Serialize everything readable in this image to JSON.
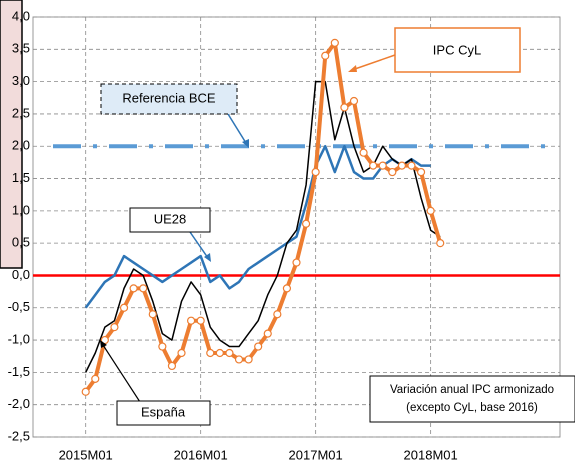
{
  "chart_data": {
    "type": "line",
    "categories": [
      null,
      null,
      null,
      null,
      null,
      "2015M01",
      null,
      null,
      null,
      null,
      null,
      null,
      null,
      null,
      null,
      null,
      null,
      "2016M01",
      null,
      null,
      null,
      null,
      null,
      null,
      null,
      null,
      null,
      null,
      null,
      "2017M01",
      null,
      null,
      null,
      null,
      null,
      null,
      null,
      null,
      null,
      null,
      null,
      "2018M01",
      null,
      null,
      null,
      null,
      null,
      null,
      null,
      null,
      null,
      null,
      null,
      null,
      null
    ],
    "series": [
      {
        "name": "UE28",
        "color": "#2E75B6",
        "values": [
          null,
          null,
          null,
          null,
          null,
          -0.5,
          -0.3,
          -0.1,
          0.0,
          0.3,
          0.2,
          0.1,
          0.0,
          -0.1,
          0.0,
          0.1,
          0.2,
          0.3,
          -0.1,
          0.0,
          -0.2,
          -0.1,
          0.1,
          0.2,
          0.3,
          0.4,
          0.5,
          0.6,
          1.1,
          1.7,
          2.0,
          1.6,
          2.0,
          1.6,
          1.5,
          1.5,
          1.7,
          1.8,
          1.7,
          1.8,
          1.7,
          1.7,
          null,
          null,
          null,
          null,
          null,
          null,
          null,
          null,
          null,
          null,
          null,
          null,
          null
        ]
      },
      {
        "name": "España",
        "color": "#000000",
        "values": [
          null,
          null,
          null,
          null,
          null,
          -1.5,
          -1.2,
          -0.8,
          -0.7,
          -0.2,
          0.1,
          0.0,
          -0.4,
          -0.9,
          -1.0,
          -0.4,
          -0.1,
          -0.3,
          -0.8,
          -1.0,
          -1.1,
          -1.1,
          -0.9,
          -0.7,
          -0.3,
          0.0,
          0.5,
          0.7,
          1.4,
          3.0,
          3.0,
          2.1,
          2.6,
          2.0,
          1.6,
          1.7,
          2.0,
          1.8,
          1.7,
          1.8,
          1.2,
          0.7,
          0.6,
          null,
          null,
          null,
          null,
          null,
          null,
          null,
          null,
          null,
          null,
          null,
          null
        ]
      },
      {
        "name": "IPC CyL",
        "color": "#ED7D31",
        "values": [
          null,
          null,
          null,
          null,
          null,
          -1.8,
          -1.6,
          -1.0,
          -0.8,
          -0.5,
          -0.2,
          -0.2,
          -0.6,
          -1.1,
          -1.4,
          -1.2,
          -0.7,
          -0.7,
          -1.2,
          -1.2,
          -1.2,
          -1.3,
          -1.3,
          -1.1,
          -0.9,
          -0.6,
          -0.2,
          0.2,
          0.8,
          1.6,
          3.4,
          3.6,
          2.6,
          2.7,
          1.9,
          1.7,
          1.7,
          1.6,
          1.7,
          1.7,
          1.6,
          1.0,
          0.5,
          null,
          null,
          null,
          null,
          null,
          null,
          null,
          null,
          null,
          null,
          null,
          null
        ]
      }
    ],
    "reference_line": {
      "label": "Referencia BCE",
      "value": 2.0,
      "color": "#5B9BD5"
    },
    "note": [
      "Variación anual IPC armonizado",
      "(excepto CyL, base 2016)"
    ],
    "ylim": [
      -2.5,
      4.0
    ],
    "yticks": [
      {
        "value": -2.5,
        "label": "-2,5"
      },
      {
        "value": -2.0,
        "label": "-2,0"
      },
      {
        "value": -1.5,
        "label": "-1,5"
      },
      {
        "value": -1.0,
        "label": "-1,0"
      },
      {
        "value": -0.5,
        "label": "-0,5"
      },
      {
        "value": 0,
        "label": "0,0"
      },
      {
        "value": 0.5,
        "label": "0,5"
      },
      {
        "value": 1.0,
        "label": "1,0"
      },
      {
        "value": 1.5,
        "label": "1,5"
      },
      {
        "value": 2.0,
        "label": "2,0"
      },
      {
        "value": 2.5,
        "label": "2,5"
      },
      {
        "value": 3.0,
        "label": "3,0"
      },
      {
        "value": 3.5,
        "label": "3,5"
      },
      {
        "value": 4.0,
        "label": "4,0"
      }
    ],
    "grid": true
  }
}
